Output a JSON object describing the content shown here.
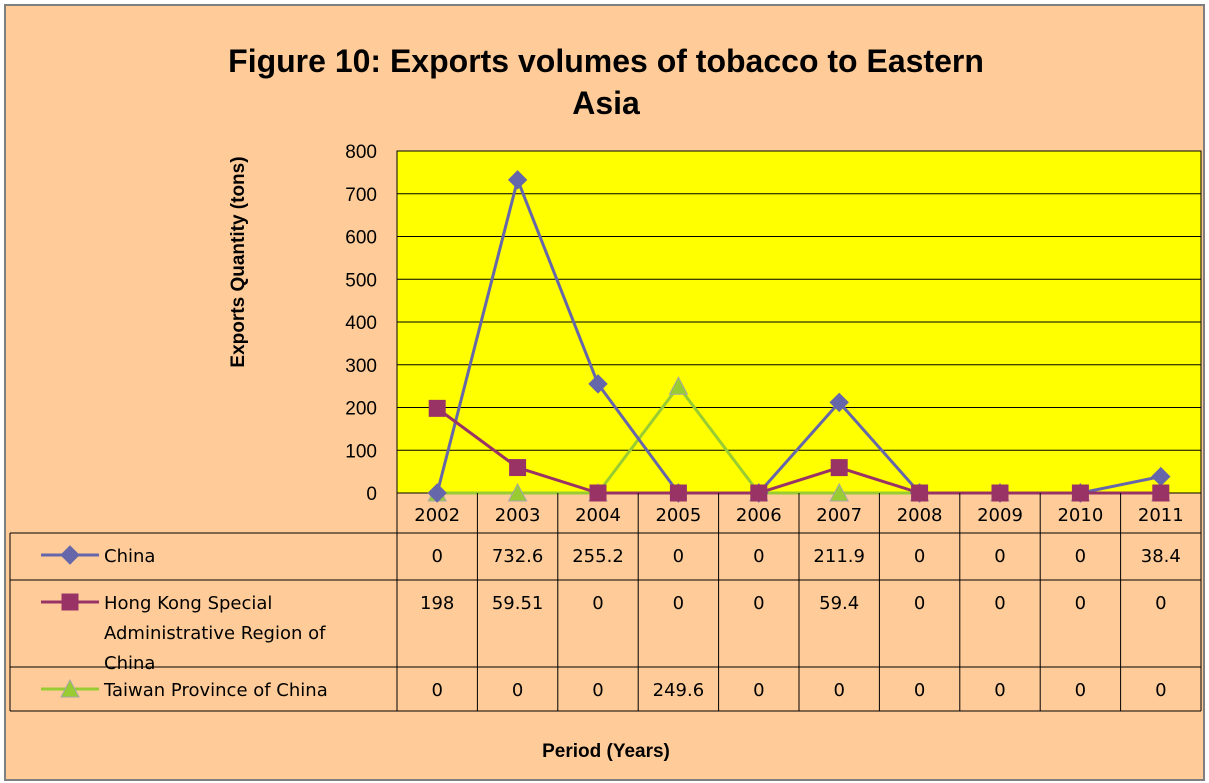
{
  "chart_data": {
    "type": "line",
    "title_lines": [
      "Figure 10: Exports volumes of tobacco to Eastern",
      "Asia"
    ],
    "xlabel": "Period (Years)",
    "ylabel": "Exports Quantity (tons)",
    "ylim": [
      0,
      800
    ],
    "yticks": [
      "0",
      "100",
      "200",
      "300",
      "400",
      "500",
      "600",
      "700",
      "800"
    ],
    "categories": [
      "2002",
      "2003",
      "2004",
      "2005",
      "2006",
      "2007",
      "2008",
      "2009",
      "2010",
      "2011"
    ],
    "grid": true,
    "legend_placement": "data-table-left",
    "plot_background": "#ffff00",
    "chart_background": "#ffcc99",
    "series": [
      {
        "name_lines": [
          "China"
        ],
        "color": "#6666aa",
        "marker": "diamond",
        "values": [
          0,
          732.6,
          255.2,
          0,
          0,
          211.9,
          0,
          0,
          0,
          38.4
        ],
        "labels": [
          "0",
          "732.6",
          "255.2",
          "0",
          "0",
          "211.9",
          "0",
          "0",
          "0",
          "38.4"
        ]
      },
      {
        "name_lines": [
          "Hong Kong Special",
          "Administrative Region of",
          "China"
        ],
        "color": "#993366",
        "marker": "square",
        "values": [
          198,
          59.51,
          0,
          0,
          0,
          59.4,
          0,
          0,
          0,
          0
        ],
        "labels": [
          "198",
          "59.51",
          "0",
          "0",
          "0",
          "59.4",
          "0",
          "0",
          "0",
          "0"
        ]
      },
      {
        "name_lines": [
          "Taiwan Province of China"
        ],
        "color": "#99cc33",
        "marker": "triangle",
        "values": [
          0,
          0,
          0,
          249.6,
          0,
          0,
          0,
          0,
          0,
          0
        ],
        "labels": [
          "0",
          "0",
          "0",
          "249.6",
          "0",
          "0",
          "0",
          "0",
          "0",
          "0"
        ]
      }
    ]
  }
}
